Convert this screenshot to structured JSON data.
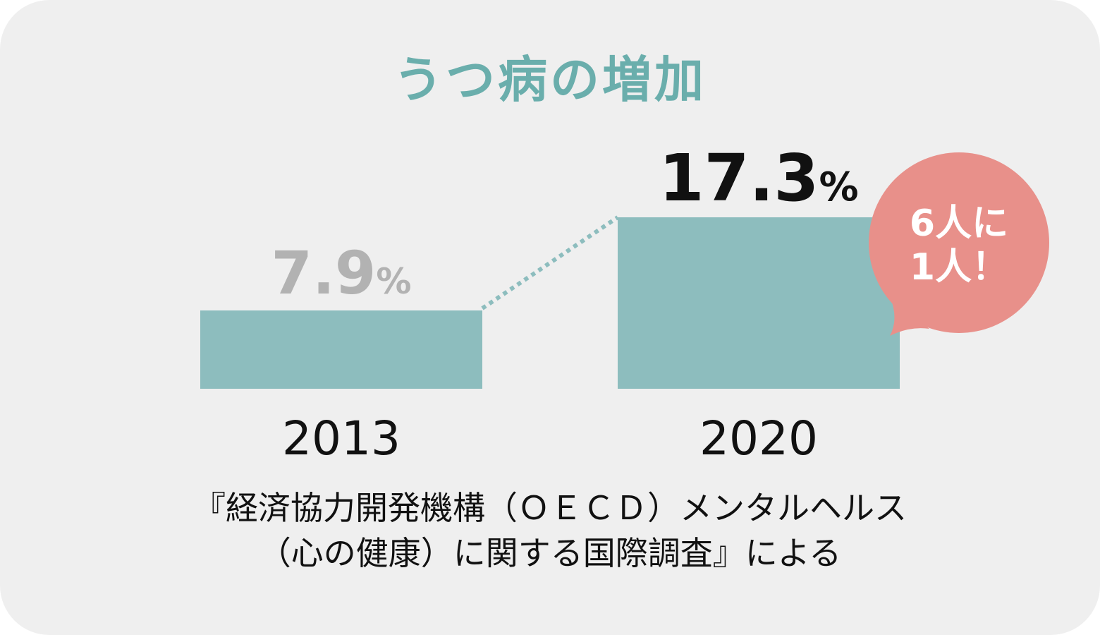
{
  "chart_data": {
    "type": "bar",
    "title": "うつ病の増加",
    "categories": [
      "2013",
      "2020"
    ],
    "values": [
      7.9,
      17.3
    ],
    "unit": "%",
    "value_labels": [
      "7.9",
      "17.3"
    ],
    "value_colors": [
      "#b2b2b2",
      "#111111"
    ],
    "bar_color": "#8dbdbe",
    "connector_color": "#8dbdbe",
    "grid": false
  },
  "callout": {
    "line1": "6人に",
    "line2": "1人！",
    "color": "#e8908a"
  },
  "source": {
    "line1": "『経済協力開発機構（ＯＥＣＤ）メンタルヘルス",
    "line2": "（心の健康）に関する国際調査』による"
  },
  "colors": {
    "background": "#efefef",
    "title": "#6aaeac"
  }
}
